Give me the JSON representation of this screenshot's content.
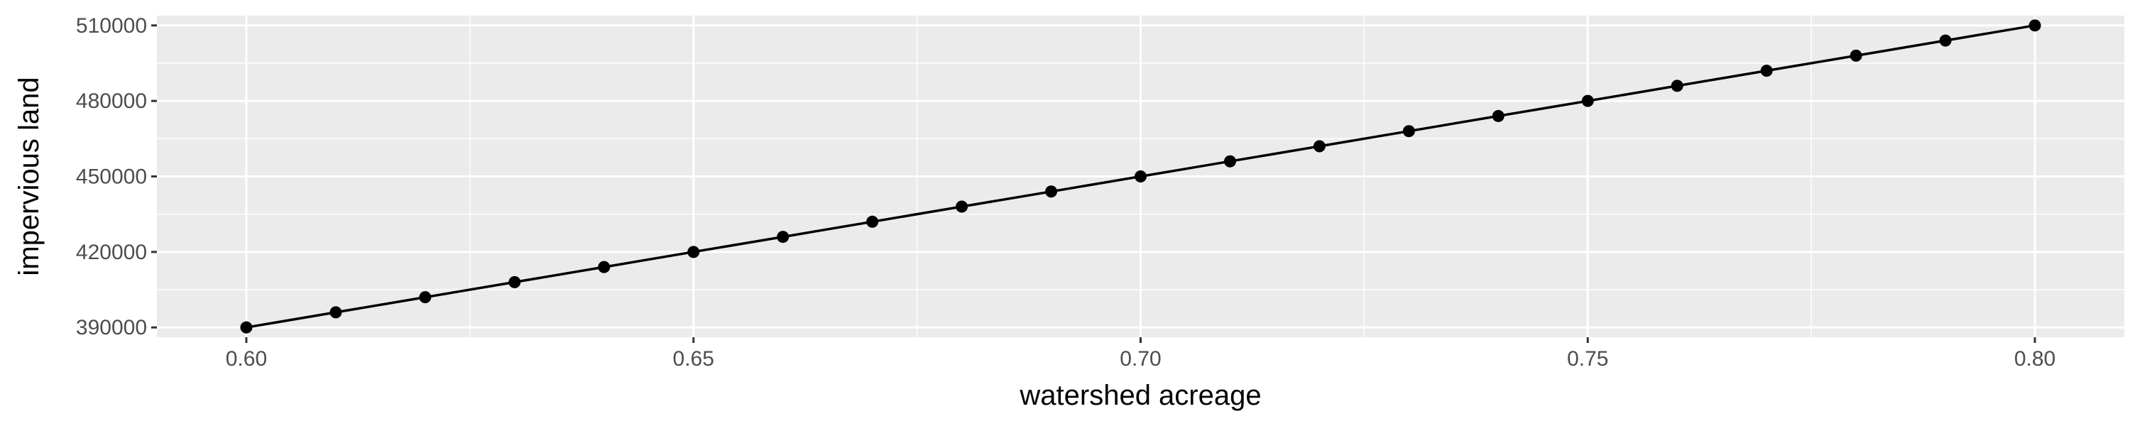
{
  "chart_data": {
    "type": "line",
    "title": "",
    "xlabel": "watershed acreage",
    "ylabel": "impervious land",
    "xlim": [
      0.59,
      0.81
    ],
    "ylim": [
      386100,
      513900
    ],
    "x_ticks": [
      0.6,
      0.65,
      0.7,
      0.75,
      0.8
    ],
    "x_tick_labels": [
      "0.60",
      "0.65",
      "0.70",
      "0.75",
      "0.80"
    ],
    "y_ticks": [
      390000,
      420000,
      450000,
      480000,
      510000
    ],
    "y_tick_labels": [
      "390000",
      "420000",
      "450000",
      "480000",
      "510000"
    ],
    "grid": true,
    "legend": "none",
    "series": [
      {
        "x": [
          0.6,
          0.61,
          0.62,
          0.63,
          0.64,
          0.65,
          0.66,
          0.67,
          0.68,
          0.69,
          0.7,
          0.71,
          0.72,
          0.73,
          0.74,
          0.75,
          0.76,
          0.77,
          0.78,
          0.79,
          0.8
        ],
        "y": [
          390000,
          396000,
          402000,
          408000,
          414000,
          420000,
          426000,
          432000,
          438000,
          444000,
          450000,
          456000,
          462000,
          468000,
          474000,
          480000,
          486000,
          492000,
          498000,
          504000,
          510000
        ]
      }
    ]
  },
  "colors": {
    "panel_background": "#ebebeb",
    "grid_major": "#ffffff",
    "line": "#000000",
    "point": "#000000",
    "tick_text": "#4d4d4d",
    "tick_mark": "#333333"
  }
}
